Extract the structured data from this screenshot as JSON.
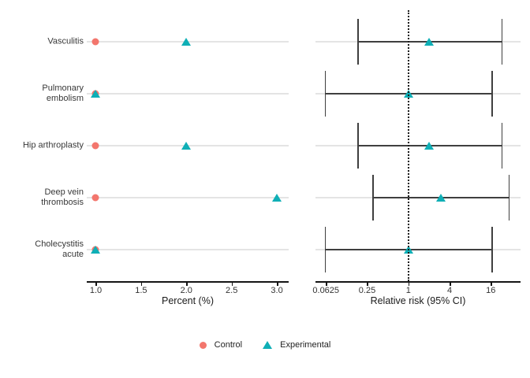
{
  "chart_data": {
    "type": "scatter",
    "description": "Two-panel adverse-events dot plot with forest plot of relative risks",
    "categories": [
      "Vasculitis",
      "Pulmonary embolism",
      "Hip arthroplasty",
      "Deep vein thrombosis",
      "Cholecystitis acute"
    ],
    "colors": {
      "control": "#f3766d",
      "experimental": "#0fafb6"
    },
    "panels": [
      {
        "title": "Percent (%)",
        "scale": "linear",
        "xlim": [
          0.9,
          3.13
        ],
        "ticks": [
          1.0,
          1.5,
          2.0,
          2.5,
          3.0
        ],
        "tick_labels": [
          "1.0",
          "1.5",
          "2.0",
          "2.5",
          "3.0"
        ],
        "grid": "row-lines",
        "series": [
          {
            "name": "Control",
            "marker": "circle",
            "color": "#f3766d",
            "values": [
              1.0,
              1.0,
              1.0,
              1.0,
              1.0
            ]
          },
          {
            "name": "Experimental",
            "marker": "triangle",
            "color": "#0fafb6",
            "values": [
              2.0,
              1.0,
              2.0,
              3.0,
              1.0
            ]
          }
        ]
      },
      {
        "title": "Relative risk (95% CI)",
        "scale": "log4",
        "xlim": [
          0.044,
          43.5
        ],
        "ticks": [
          0.0625,
          0.25,
          1,
          4,
          16
        ],
        "tick_labels": [
          "0.0625",
          "0.25",
          "1",
          "4",
          "16"
        ],
        "reference_line": 1,
        "grid": "row-lines",
        "series": [
          {
            "name": "Experimental relative risk",
            "marker": "triangle",
            "color": "#0fafb6",
            "estimates": [
              2.0,
              1.0,
              2.0,
              3.0,
              1.0
            ],
            "lower": [
              0.18,
              0.06,
              0.18,
              0.3,
              0.06
            ],
            "upper": [
              23,
              16.5,
              23,
              29,
              16.5
            ]
          }
        ]
      }
    ],
    "legend": {
      "position": "bottom-center",
      "items": [
        {
          "label": "Control",
          "marker": "circle",
          "color": "#f3766d"
        },
        {
          "label": "Experimental",
          "marker": "triangle",
          "color": "#0fafb6"
        }
      ]
    }
  }
}
